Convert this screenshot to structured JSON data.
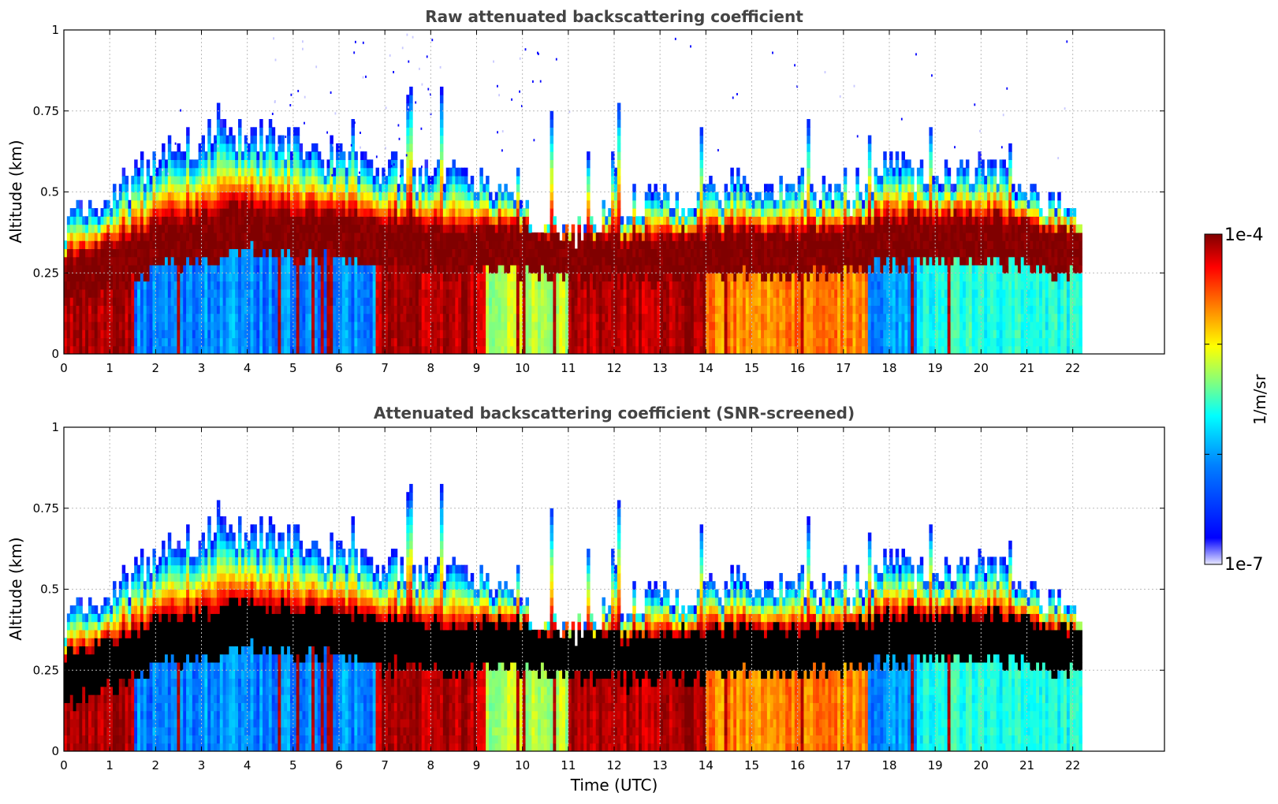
{
  "chart_data": [
    {
      "type": "heatmap",
      "title": "Raw attenuated backscattering coefficient",
      "xlabel": "",
      "ylabel": "Altitude (km)",
      "xlim": [
        0,
        24
      ],
      "ylim": [
        0,
        1
      ],
      "data_extent_x": [
        0,
        22.2
      ],
      "x_ticks": [
        "0",
        "1",
        "2",
        "3",
        "4",
        "5",
        "6",
        "7",
        "8",
        "9",
        "10",
        "11",
        "12",
        "13",
        "14",
        "15",
        "16",
        "17",
        "18",
        "19",
        "20",
        "21",
        "22"
      ],
      "y_ticks": [
        "0",
        "0.25",
        "0.5",
        "0.75",
        "1"
      ],
      "grid": true,
      "screened": false,
      "cloud_top_km": [
        [
          0,
          0.42
        ],
        [
          1,
          0.48
        ],
        [
          2,
          0.6
        ],
        [
          3,
          0.68
        ],
        [
          4,
          0.68
        ],
        [
          5,
          0.65
        ],
        [
          6,
          0.6
        ],
        [
          7,
          0.58
        ],
        [
          8,
          0.55
        ],
        [
          9,
          0.55
        ],
        [
          10,
          0.45
        ],
        [
          11,
          0.38
        ],
        [
          12,
          0.45
        ],
        [
          13,
          0.48
        ],
        [
          14,
          0.5
        ],
        [
          15,
          0.52
        ],
        [
          16,
          0.52
        ],
        [
          17,
          0.48
        ],
        [
          18,
          0.58
        ],
        [
          19,
          0.55
        ],
        [
          20,
          0.58
        ],
        [
          21,
          0.5
        ],
        [
          22,
          0.42
        ]
      ],
      "core_km": [
        [
          0,
          0.22
        ],
        [
          2,
          0.32
        ],
        [
          4,
          0.38
        ],
        [
          6,
          0.35
        ],
        [
          8,
          0.32
        ],
        [
          10,
          0.32
        ],
        [
          12,
          0.28
        ],
        [
          14,
          0.3
        ],
        [
          16,
          0.3
        ],
        [
          18,
          0.34
        ],
        [
          20,
          0.35
        ],
        [
          22,
          0.3
        ]
      ],
      "surface_regime": [
        {
          "x0": 0,
          "x1": 1.5,
          "level": "high"
        },
        {
          "x0": 1.5,
          "x1": 6.8,
          "level": "low"
        },
        {
          "x0": 6.8,
          "x1": 9.2,
          "level": "high"
        },
        {
          "x0": 9.2,
          "x1": 11,
          "level": "mid"
        },
        {
          "x0": 11,
          "x1": 14,
          "level": "high"
        },
        {
          "x0": 14,
          "x1": 17.5,
          "level": "midhigh"
        },
        {
          "x0": 17.5,
          "x1": 18.6,
          "level": "low"
        },
        {
          "x0": 18.6,
          "x1": 22.2,
          "level": "lowmid"
        }
      ]
    },
    {
      "type": "heatmap",
      "title": "Attenuated backscattering coefficient (SNR-screened)",
      "xlabel": "Time (UTC)",
      "ylabel": "Altitude (km)",
      "xlim": [
        0,
        24
      ],
      "ylim": [
        0,
        1
      ],
      "data_extent_x": [
        0,
        22.2
      ],
      "x_ticks": [
        "0",
        "1",
        "2",
        "3",
        "4",
        "5",
        "6",
        "7",
        "8",
        "9",
        "10",
        "11",
        "12",
        "13",
        "14",
        "15",
        "16",
        "17",
        "18",
        "19",
        "20",
        "21",
        "22"
      ],
      "y_ticks": [
        "0",
        "0.25",
        "0.5",
        "0.75",
        "1"
      ],
      "grid": true,
      "screened": true
    }
  ],
  "colorbar": {
    "label": "1/m/sr",
    "max_label": "1e-4",
    "min_label": "1e-7",
    "scale": "log",
    "range": [
      1e-07,
      0.0001
    ],
    "colormap": [
      "#e8e8ff",
      "#0000ff",
      "#0080ff",
      "#00ffff",
      "#80ff80",
      "#ffff00",
      "#ff8000",
      "#ff0000",
      "#800000"
    ]
  }
}
